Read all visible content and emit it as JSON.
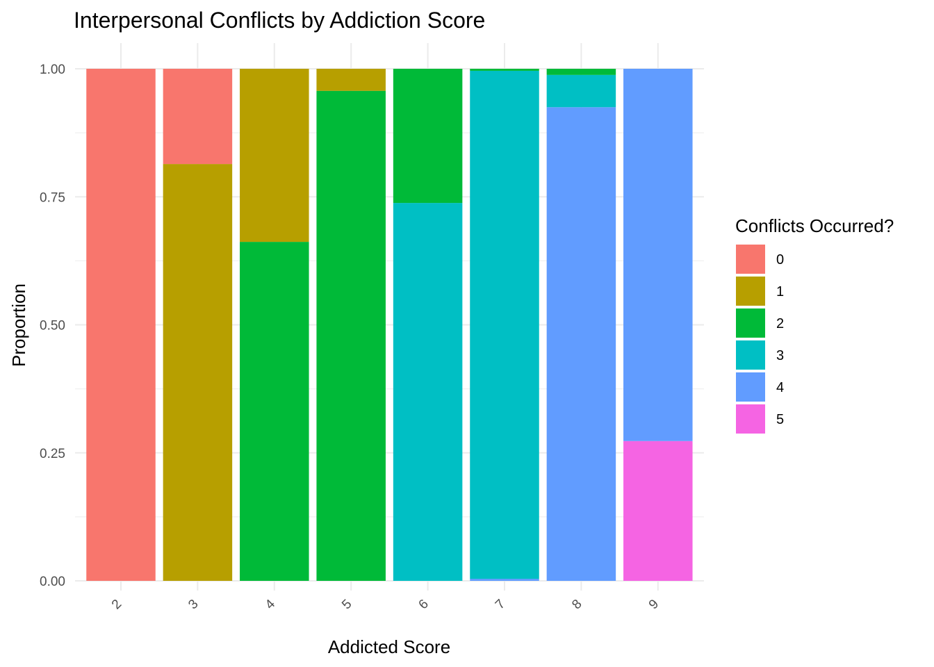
{
  "chart_data": {
    "type": "bar",
    "stacked": "fill",
    "title": "Interpersonal Conflicts by Addiction Score",
    "xlabel": "Addicted Score",
    "ylabel": "Proportion",
    "categories": [
      "2",
      "3",
      "4",
      "5",
      "6",
      "7",
      "8",
      "9"
    ],
    "ylim": [
      0,
      1
    ],
    "yticks": [
      "0.00",
      "0.25",
      "0.50",
      "0.75",
      "1.00"
    ],
    "ytick_values": [
      0,
      0.25,
      0.5,
      0.75,
      1.0
    ],
    "legend": {
      "title": "Conflicts Occurred?",
      "position": "right"
    },
    "series": [
      {
        "name": "0",
        "color": "#F8766D",
        "values": [
          1.0,
          0.186,
          0,
          0,
          0,
          0,
          0,
          0
        ]
      },
      {
        "name": "1",
        "color": "#B79F00",
        "values": [
          0,
          0.814,
          0.338,
          0.043,
          0,
          0,
          0,
          0
        ]
      },
      {
        "name": "2",
        "color": "#00BA38",
        "values": [
          0,
          0,
          0.662,
          0.957,
          0.262,
          0.004,
          0.012,
          0
        ]
      },
      {
        "name": "3",
        "color": "#00BFC4",
        "values": [
          0,
          0,
          0,
          0,
          0.738,
          0.992,
          0.063,
          0
        ]
      },
      {
        "name": "4",
        "color": "#619CFF",
        "values": [
          0,
          0,
          0,
          0,
          0,
          0.004,
          0.925,
          0.727
        ]
      },
      {
        "name": "5",
        "color": "#F564E3",
        "values": [
          0,
          0,
          0,
          0,
          0,
          0,
          0,
          0.273
        ]
      }
    ]
  }
}
